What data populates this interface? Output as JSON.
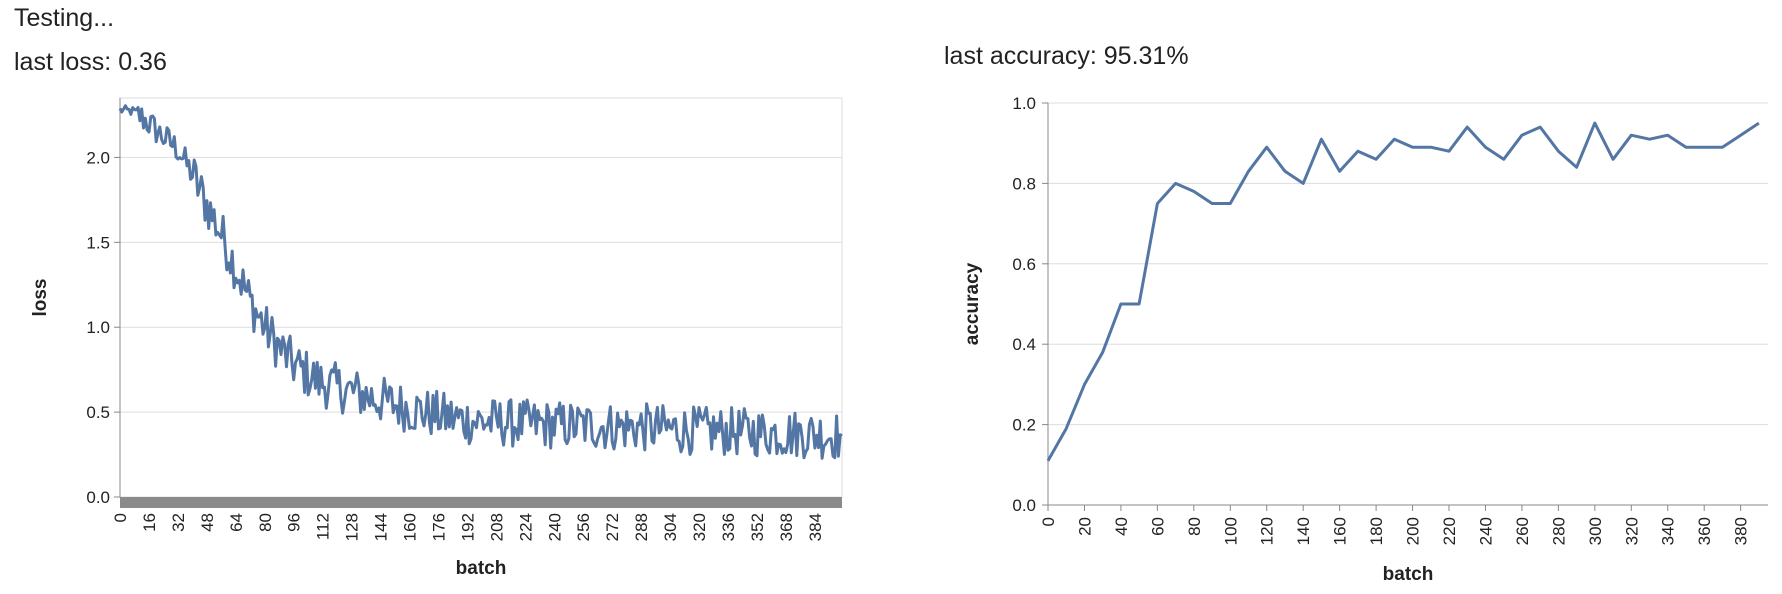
{
  "status": "Testing...",
  "loss_caption": "last loss: 0.36",
  "accuracy_caption": "last accuracy: 95.31%",
  "colors": {
    "line": "#5476a4",
    "grid": "#dddddd",
    "axis": "#888888",
    "band": "#8a8a8a"
  },
  "chart_data": [
    {
      "type": "line",
      "xlabel": "batch",
      "ylabel": "loss",
      "xlim": [
        0,
        399
      ],
      "ylim": [
        0,
        2.35
      ],
      "yticks": [
        0.0,
        0.5,
        1.0,
        1.5,
        2.0
      ],
      "ytick_labels": [
        "0.0",
        "0.5",
        "1.0",
        "1.5",
        "2.0"
      ],
      "xticks": [
        0,
        16,
        32,
        48,
        64,
        80,
        96,
        112,
        128,
        144,
        160,
        176,
        192,
        208,
        224,
        240,
        256,
        272,
        288,
        304,
        320,
        336,
        352,
        368,
        384
      ],
      "grid": true,
      "series_note": "noisy per-batch loss decaying from ~2.3 to ~0.4 (approximate shape)",
      "anchor_points": [
        [
          0,
          2.28
        ],
        [
          8,
          2.27
        ],
        [
          16,
          2.2
        ],
        [
          24,
          2.12
        ],
        [
          32,
          2.05
        ],
        [
          40,
          1.9
        ],
        [
          48,
          1.72
        ],
        [
          56,
          1.55
        ],
        [
          64,
          1.35
        ],
        [
          72,
          1.15
        ],
        [
          80,
          1.0
        ],
        [
          88,
          0.88
        ],
        [
          96,
          0.78
        ],
        [
          104,
          0.72
        ],
        [
          112,
          0.67
        ],
        [
          128,
          0.62
        ],
        [
          144,
          0.57
        ],
        [
          160,
          0.52
        ],
        [
          176,
          0.48
        ],
        [
          192,
          0.45
        ],
        [
          224,
          0.43
        ],
        [
          256,
          0.42
        ],
        [
          288,
          0.41
        ],
        [
          320,
          0.39
        ],
        [
          352,
          0.38
        ],
        [
          384,
          0.37
        ],
        [
          399,
          0.36
        ]
      ],
      "noise_amplitude": 0.09
    },
    {
      "type": "line",
      "xlabel": "batch",
      "ylabel": "accuracy",
      "xlim": [
        0,
        395
      ],
      "ylim": [
        0,
        1.0
      ],
      "yticks": [
        0.0,
        0.2,
        0.4,
        0.6,
        0.8,
        1.0
      ],
      "ytick_labels": [
        "0.0",
        "0.2",
        "0.4",
        "0.6",
        "0.8",
        "1.0"
      ],
      "xticks": [
        0,
        20,
        40,
        60,
        80,
        100,
        120,
        140,
        160,
        180,
        200,
        220,
        240,
        260,
        280,
        300,
        320,
        340,
        360,
        380
      ],
      "grid": true,
      "x": [
        0,
        10,
        20,
        30,
        40,
        50,
        60,
        70,
        80,
        90,
        100,
        110,
        120,
        130,
        140,
        150,
        160,
        170,
        180,
        190,
        200,
        210,
        220,
        230,
        240,
        250,
        260,
        270,
        280,
        290,
        300,
        310,
        320,
        330,
        340,
        350,
        360,
        370,
        380,
        390
      ],
      "y": [
        0.11,
        0.19,
        0.3,
        0.38,
        0.5,
        0.5,
        0.75,
        0.8,
        0.78,
        0.75,
        0.75,
        0.83,
        0.89,
        0.83,
        0.8,
        0.91,
        0.83,
        0.88,
        0.86,
        0.91,
        0.89,
        0.89,
        0.88,
        0.94,
        0.89,
        0.86,
        0.92,
        0.94,
        0.88,
        0.84,
        0.95,
        0.86,
        0.92,
        0.91,
        0.92,
        0.89,
        0.89,
        0.89,
        0.92,
        0.95
      ]
    }
  ]
}
